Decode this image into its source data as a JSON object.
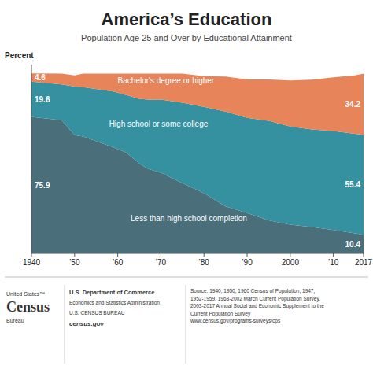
{
  "chart_data": {
    "type": "area",
    "title": "America’s Education",
    "subtitle": "Population Age 25 and Over by Educational Attainment",
    "ylabel": "Percent",
    "stacked": true,
    "tick_labels": "x",
    "x": [
      1940,
      1947,
      1950,
      1952,
      1959,
      1962,
      1965,
      1967,
      1970,
      1975,
      1980,
      1985,
      1990,
      1995,
      2000,
      2005,
      2010,
      2015,
      2017
    ],
    "series": [
      {
        "name": "Less than high school completion",
        "color": "#4a6e7a",
        "values": [
          75.9,
          74.0,
          65.7,
          65.0,
          58.9,
          56.0,
          50.0,
          47.0,
          44.8,
          39.0,
          33.5,
          26.1,
          22.4,
          18.4,
          16.0,
          14.7,
          13.0,
          11.2,
          10.4
        ]
      },
      {
        "name": "High school or some college",
        "color": "#3590a0",
        "values": [
          19.6,
          20.0,
          27.1,
          27.4,
          31.1,
          32.0,
          36.0,
          38.5,
          40.7,
          44.8,
          48.0,
          52.8,
          53.0,
          55.3,
          54.5,
          54.2,
          55.0,
          55.3,
          55.4
        ]
      },
      {
        "name": "Bachelor's degree or higher",
        "color": "#e8845a",
        "values": [
          4.6,
          6.0,
          6.2,
          7.6,
          10.0,
          12.0,
          14.0,
          14.5,
          14.5,
          16.2,
          17.0,
          19.4,
          21.3,
          23.0,
          25.6,
          27.7,
          29.9,
          32.5,
          34.2
        ]
      }
    ],
    "xlim": [
      1940,
      2017
    ],
    "xticks": [
      1940,
      {
        "value": 1950,
        "label": "’50"
      },
      {
        "value": 1960,
        "label": "’60"
      },
      {
        "value": 1970,
        "label": "’70"
      },
      {
        "value": 1980,
        "label": "’80"
      },
      {
        "value": 1990,
        "label": "’90"
      },
      2000,
      {
        "value": 2010,
        "label": "’10"
      },
      2017
    ],
    "ylim": [
      0,
      105
    ],
    "annotations": [
      "United States™",
      "Census",
      "Bureau",
      "U.S. Department of Commerce",
      "Economics and Statistics Administration",
      "U.S. CENSUS BUREAU",
      "census.gov",
      "Source: 1940, 1950, 1960 Census of Population; 1947,\n1952-1959, 1963-2002 March Current Population Survey,\n2003-2017 Annual Social and Economic Supplement to the\nCurrent Population Survey\nwww.census.gov/programs-surveys/cps"
    ]
  }
}
